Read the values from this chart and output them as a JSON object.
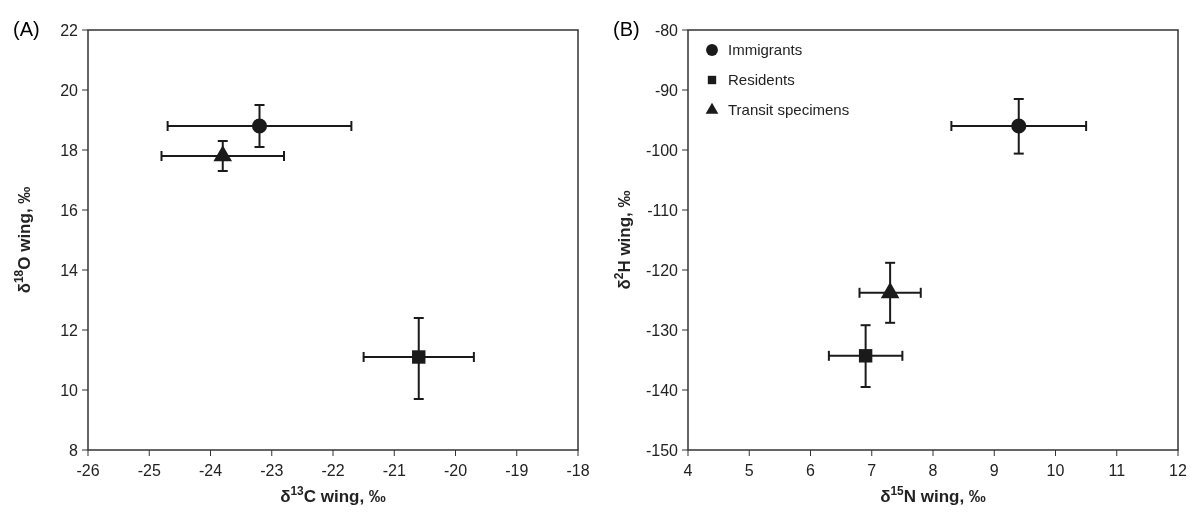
{
  "chart_data": [
    {
      "type": "scatter",
      "title": "(A)",
      "xlabel": "δ$^{13}$C wing, ‰",
      "ylabel": "δ$^{18}$O wing, ‰",
      "xlim": [
        -26,
        -18
      ],
      "xticks": [
        -26,
        -25,
        -24,
        -23,
        -22,
        -21,
        -20,
        -19,
        -18
      ],
      "ylim": [
        8,
        22
      ],
      "yticks": [
        8,
        10,
        12,
        14,
        16,
        18,
        20,
        22
      ],
      "grid": false,
      "legend": false,
      "series": [
        {
          "color": "#1a1a1a",
          "marker": "circle",
          "x": [
            -23.2
          ],
          "values": [
            18.8
          ],
          "errors": [
            [
              18.1,
              19.5
            ]
          ],
          "xerrors": [
            [
              -24.7,
              -21.7
            ]
          ]
        },
        {
          "color": "#1a1a1a",
          "marker": "square",
          "x": [
            -20.6
          ],
          "values": [
            11.1
          ],
          "errors": [
            [
              9.7,
              12.4
            ]
          ],
          "xerrors": [
            [
              -21.5,
              -19.7
            ]
          ]
        },
        {
          "color": "#1a1a1a",
          "marker": "triangle",
          "x": [
            -23.8
          ],
          "values": [
            17.8
          ],
          "errors": [
            [
              17.3,
              18.3
            ]
          ],
          "xerrors": [
            [
              -24.8,
              -22.8
            ]
          ]
        }
      ]
    },
    {
      "type": "scatter",
      "title": "(B)",
      "xlabel": "δ$^{15}$N wing, ‰",
      "ylabel": "δ$^{2}$H wing, ‰",
      "xlim": [
        4,
        12
      ],
      "xticks": [
        4,
        5,
        6,
        7,
        8,
        9,
        10,
        11,
        12
      ],
      "ylim": [
        -150,
        -80
      ],
      "yticks": [
        -150,
        -140,
        -130,
        -120,
        -110,
        -100,
        -90,
        -80
      ],
      "grid": false,
      "legend": "top left",
      "series": [
        {
          "name": "Immigrants",
          "color": "#1a1a1a",
          "marker": "circle",
          "x": [
            9.4
          ],
          "values": [
            -96
          ],
          "errors": [
            [
              -100.6,
              -91.5
            ]
          ],
          "xerrors": [
            [
              8.3,
              10.5
            ]
          ]
        },
        {
          "name": "Residents",
          "color": "#1a1a1a",
          "marker": "square",
          "x": [
            6.9
          ],
          "values": [
            -134.3
          ],
          "errors": [
            [
              -139.5,
              -129.2
            ]
          ],
          "xerrors": [
            [
              6.3,
              7.5
            ]
          ]
        },
        {
          "name": "Transit specimens",
          "color": "#1a1a1a",
          "marker": "triangle",
          "x": [
            7.3
          ],
          "values": [
            -123.8
          ],
          "errors": [
            [
              -128.8,
              -118.8
            ]
          ],
          "xerrors": [
            [
              6.8,
              7.8
            ]
          ]
        }
      ]
    }
  ]
}
